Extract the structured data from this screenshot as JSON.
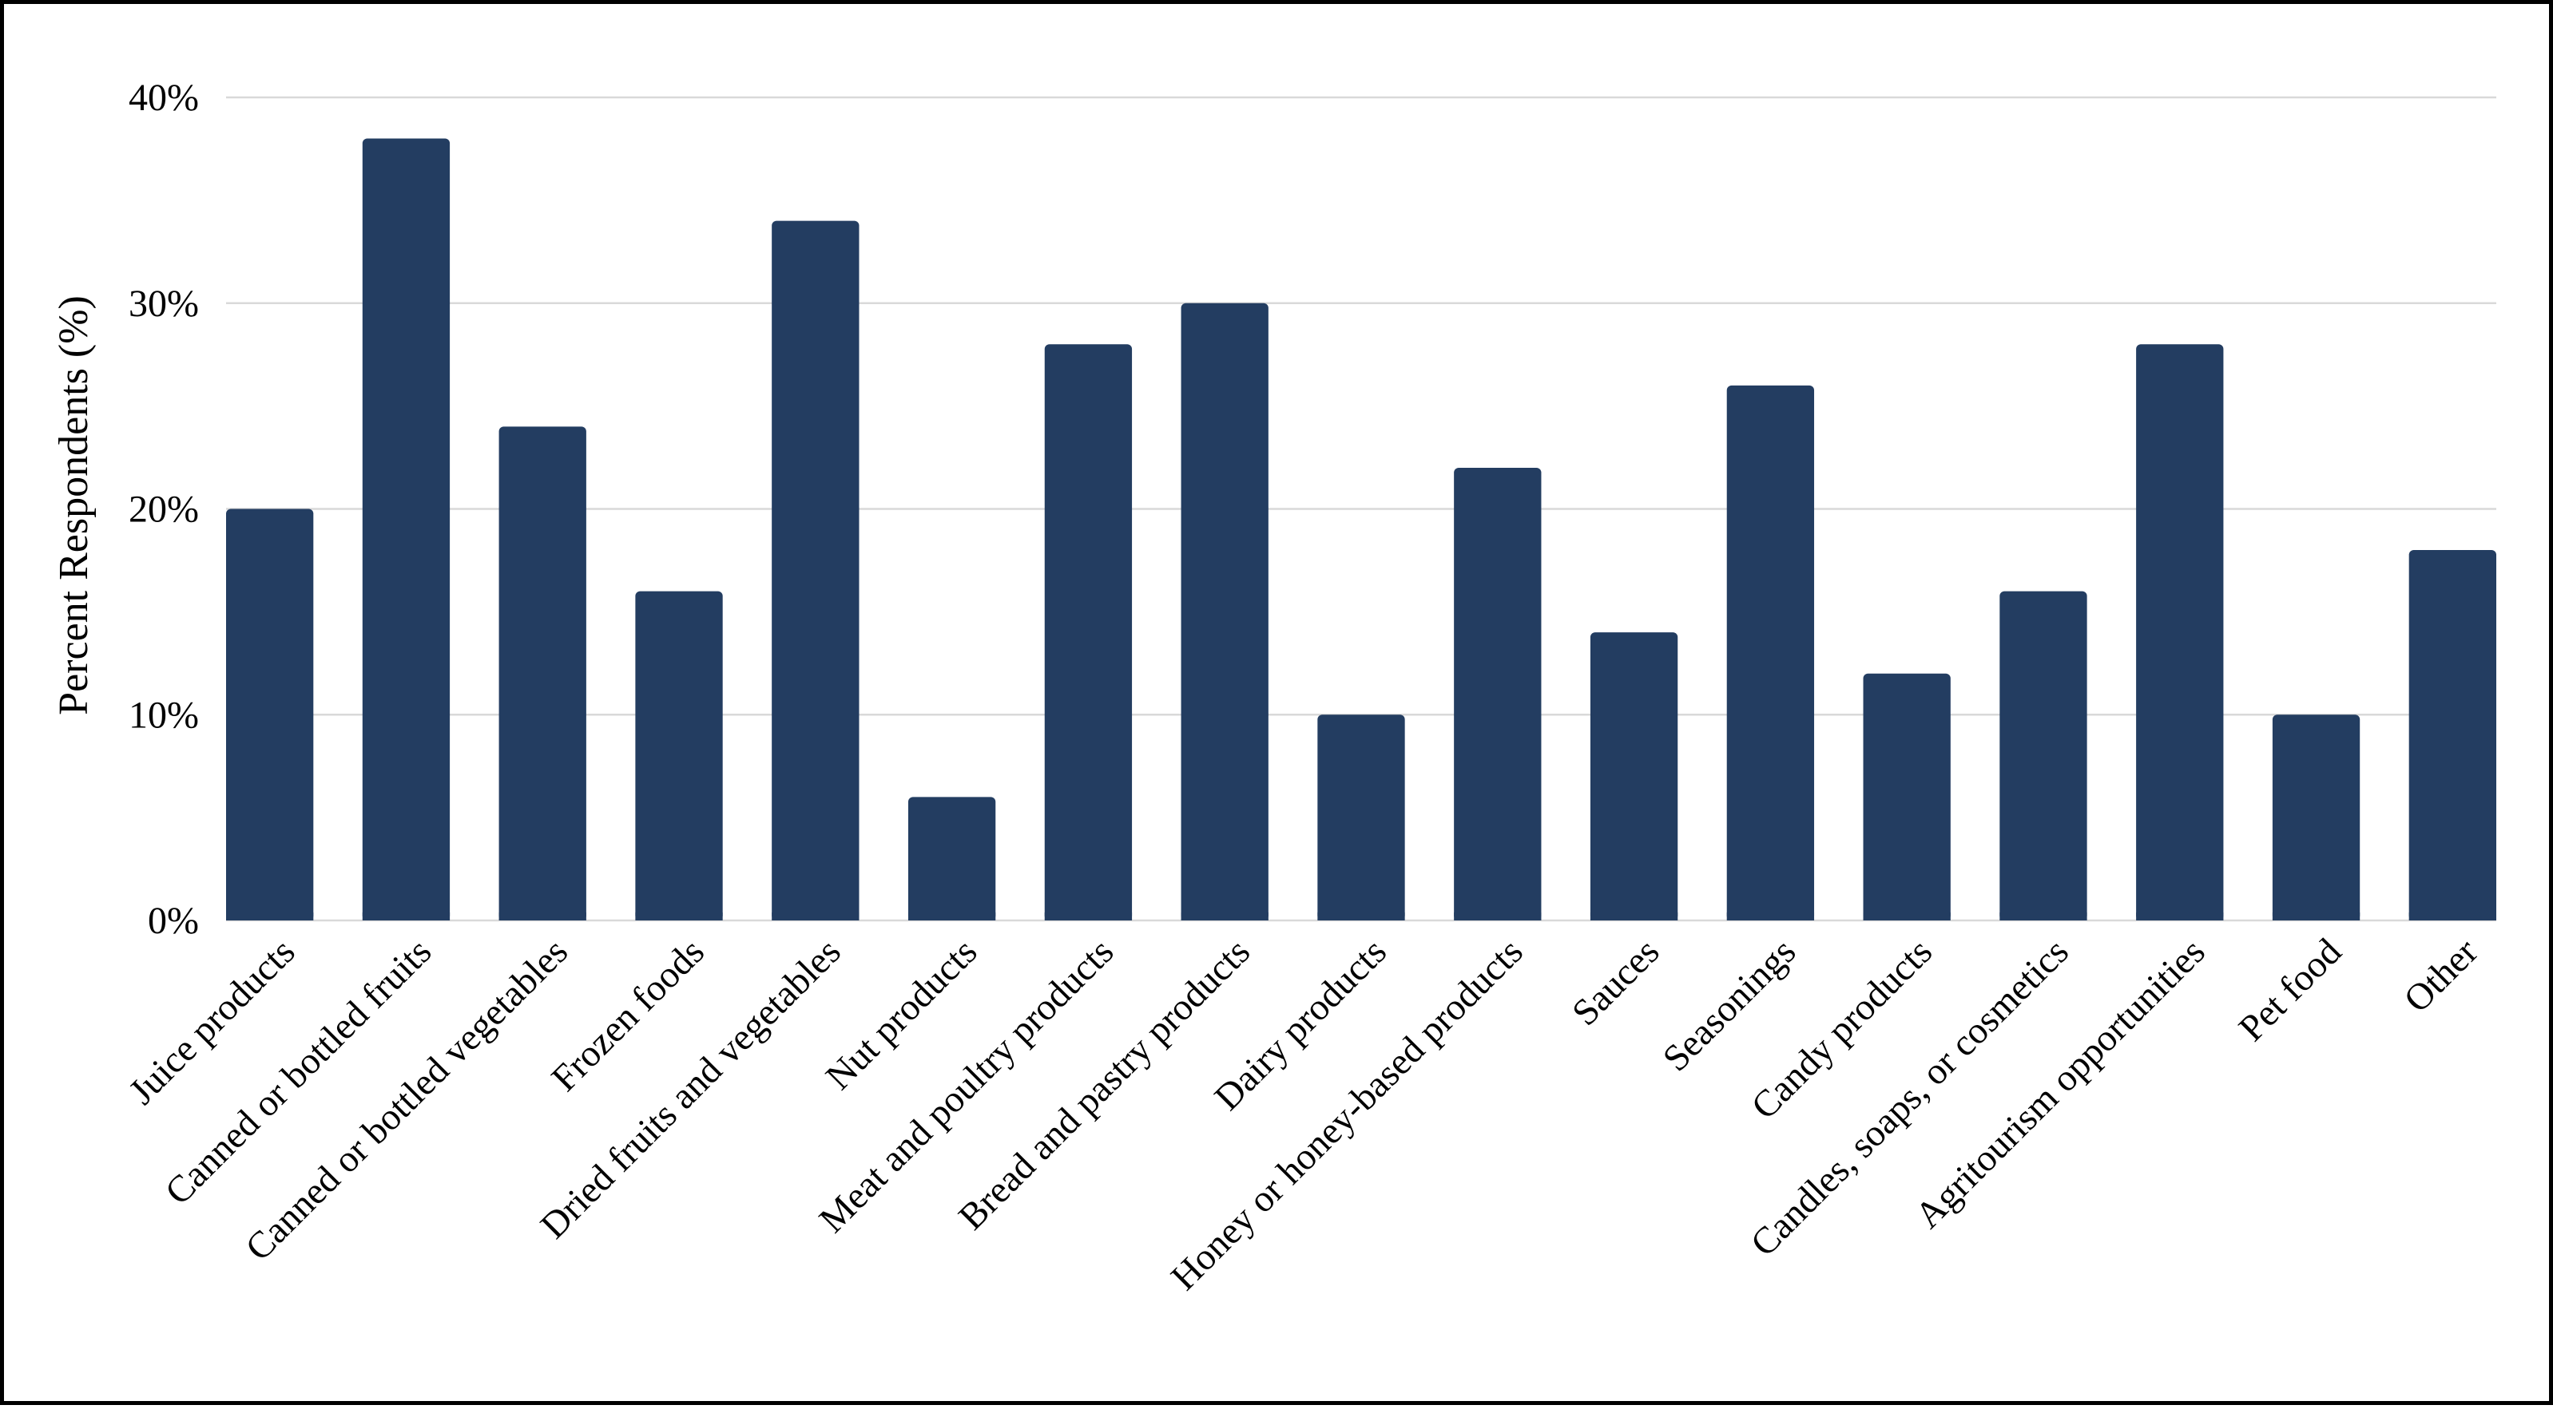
{
  "chart_data": {
    "type": "bar",
    "title": "",
    "xlabel": "",
    "ylabel": "Percent Respondents (%)",
    "ylim": [
      0,
      40
    ],
    "yticks": [
      0,
      10,
      20,
      30,
      40
    ],
    "ytick_labels": [
      "0%",
      "10%",
      "20%",
      "30%",
      "40%"
    ],
    "grid": true,
    "legend": "none",
    "bar_color": "#233d61",
    "categories": [
      "Juice products",
      "Canned or bottled fruits",
      "Canned or bottled vegetables",
      "Frozen foods",
      "Dried fruits and vegetables",
      "Nut products",
      "Meat and poultry products",
      "Bread and pastry products",
      "Dairy products",
      "Honey or honey-based products",
      "Sauces",
      "Seasonings",
      "Candy products",
      "Candles, soaps, or cosmetics",
      "Agritourism opportunities",
      "Pet food",
      "Other"
    ],
    "values": [
      20,
      38,
      24,
      16,
      34,
      6,
      28,
      30,
      10,
      22,
      14,
      26,
      12,
      16,
      28,
      10,
      18
    ]
  }
}
